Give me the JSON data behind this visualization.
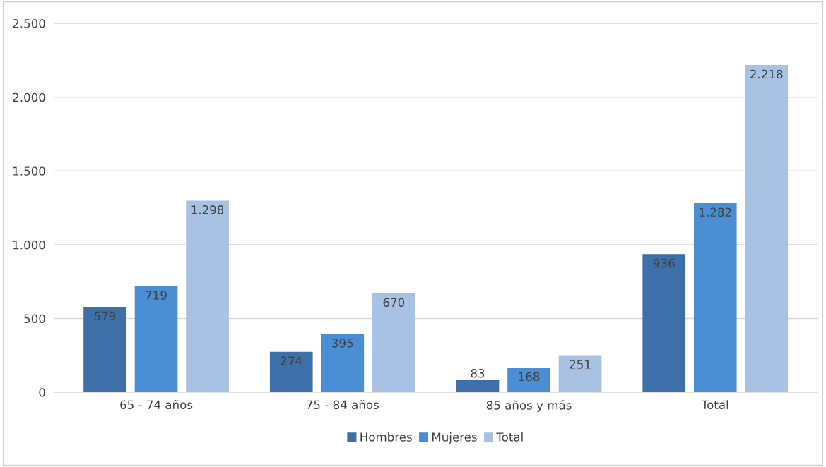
{
  "chart_data": {
    "type": "bar",
    "categories": [
      "65 - 74 años",
      "75 - 84 años",
      "85 años y más",
      "Total"
    ],
    "series": [
      {
        "name": "Hombres",
        "color": "#3d70a8",
        "values": [
          579,
          274,
          83,
          936
        ],
        "value_labels": [
          "579",
          "274",
          "83",
          "936"
        ]
      },
      {
        "name": "Mujeres",
        "color": "#4a8fd3",
        "values": [
          719,
          395,
          168,
          1282
        ],
        "value_labels": [
          "719",
          "395",
          "168",
          "1.282"
        ]
      },
      {
        "name": "Total",
        "color": "#a8c2e4",
        "values": [
          1298,
          670,
          251,
          2218
        ],
        "value_labels": [
          "1.298",
          "670",
          "251",
          "2.218"
        ]
      }
    ],
    "ylim": [
      0,
      2500
    ],
    "yticks": [
      0,
      500,
      {
        "value": 1000,
        "label": "1.000"
      },
      {
        "value": 1500,
        "label": "1.500"
      },
      {
        "value": 2000,
        "label": "2.000"
      },
      {
        "value": 2500,
        "label": "2.500"
      }
    ],
    "grid": "y",
    "legend": "bottom"
  }
}
